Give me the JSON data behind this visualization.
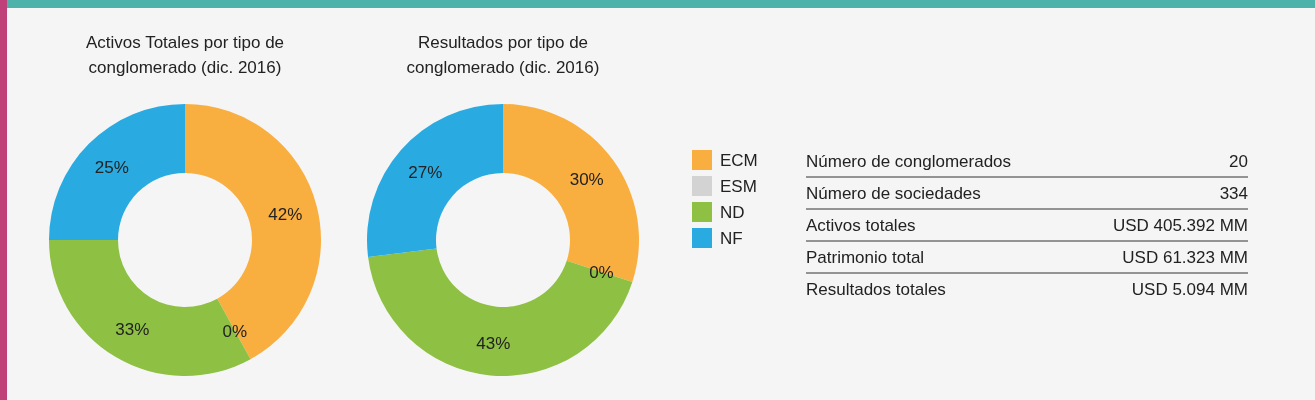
{
  "chart_data": [
    {
      "type": "donut",
      "title": "Activos Totales por tipo de conglomerado (dic. 2016)",
      "categories": [
        null,
        null,
        null,
        null
      ],
      "values": [
        42,
        0,
        33,
        25
      ],
      "value_labels": [
        "42%",
        "0%",
        "33%",
        "25%"
      ],
      "colors": [
        "#f9ae40",
        "#d3d3d3",
        "#8dc043",
        "#29abe2"
      ]
    },
    {
      "type": "donut",
      "title": "Resultados por tipo de conglomerado (dic. 2016)",
      "categories": [
        "ECM",
        "ESM",
        "ND",
        "NF"
      ],
      "values": [
        30,
        0,
        43,
        27
      ],
      "value_labels": [
        "30%",
        "0%",
        "43%",
        "27%"
      ],
      "colors": [
        "#f9ae40",
        "#d3d3d3",
        "#8dc043",
        "#29abe2"
      ],
      "legend": "right"
    },
    {
      "type": "other",
      "annotations": [
        "Número de conglomerados",
        "20",
        "Número de sociedades",
        "334",
        "Activos totales",
        "USD 405.392 MM",
        "Patrimonio total",
        "USD 61.323 MM",
        "Resultados totales",
        "USD 5.094 MM"
      ]
    }
  ]
}
